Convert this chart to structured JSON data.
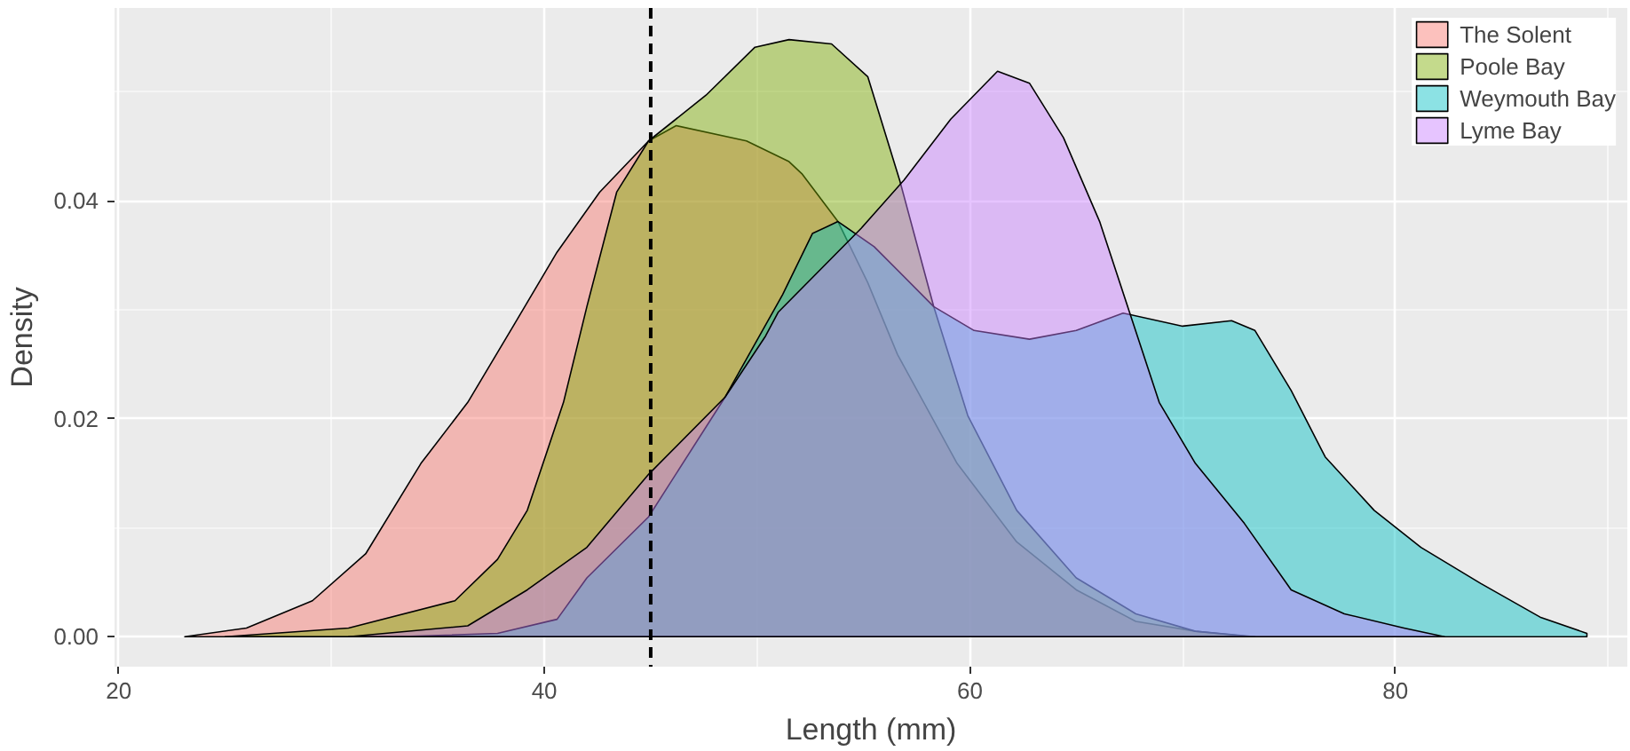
{
  "chart_data": {
    "type": "area",
    "xlabel": "Length (mm)",
    "ylabel": "Density",
    "xlim": [
      19.8,
      90.9
    ],
    "ylim": [
      -0.00275,
      0.0577
    ],
    "xticks": [
      20,
      40,
      60,
      80
    ],
    "yticks": [
      {
        "value": 0,
        "label": "0.00"
      },
      {
        "value": 0.02,
        "label": "0.02"
      },
      {
        "value": 0.04,
        "label": "0.04"
      }
    ],
    "grid": true,
    "legend": "top right",
    "ref_lines": [
      {
        "axis": "x",
        "value": 45,
        "label": null,
        "color": "#000000",
        "line_style": "dashed"
      }
    ],
    "series": [
      {
        "name": "The Solent",
        "color": "#f8766d",
        "x": [
          23.1,
          26.0,
          29.1,
          31.6,
          34.2,
          36.4,
          38.6,
          40.6,
          42.6,
          44.9,
          46.2,
          49.5,
          51.5,
          52.1,
          53.8,
          55.2,
          56.6,
          59.4,
          62.2,
          65.0,
          67.8,
          70.6,
          73.2
        ],
        "values": [
          0.0,
          0.0008,
          0.0033,
          0.0076,
          0.0159,
          0.0215,
          0.0287,
          0.0353,
          0.0408,
          0.0455,
          0.0469,
          0.0455,
          0.0436,
          0.0425,
          0.0381,
          0.0325,
          0.0259,
          0.0159,
          0.0087,
          0.0043,
          0.0014,
          0.0005,
          0.0
        ]
      },
      {
        "name": "Poole Bay",
        "color": "#7cae00",
        "x": [
          25.0,
          30.8,
          35.8,
          37.8,
          39.2,
          40.9,
          42.0,
          43.4,
          44.9,
          47.6,
          49.9,
          51.5,
          53.5,
          55.2,
          56.7,
          58.3,
          59.9,
          62.2,
          65.0,
          67.8,
          70.6,
          73.4
        ],
        "values": [
          0.0,
          0.0008,
          0.0033,
          0.0071,
          0.0116,
          0.0215,
          0.0303,
          0.0408,
          0.0455,
          0.0497,
          0.0541,
          0.0548,
          0.0544,
          0.0514,
          0.0419,
          0.0303,
          0.0203,
          0.0116,
          0.0054,
          0.0021,
          0.0005,
          0.0
        ]
      },
      {
        "name": "Weymouth Bay",
        "color": "#00bfc4",
        "x": [
          33.0,
          37.8,
          40.6,
          42.0,
          44.9,
          48.5,
          51.2,
          52.6,
          53.8,
          55.5,
          58.3,
          60.2,
          62.8,
          65.0,
          67.2,
          70.0,
          72.3,
          73.4,
          75.1,
          76.7,
          79.0,
          81.2,
          84.0,
          86.8,
          89.0
        ],
        "values": [
          0.0,
          0.0003,
          0.0016,
          0.0054,
          0.011,
          0.022,
          0.0314,
          0.037,
          0.0381,
          0.0358,
          0.0303,
          0.0281,
          0.0273,
          0.0281,
          0.0297,
          0.0285,
          0.029,
          0.0281,
          0.0226,
          0.0165,
          0.0116,
          0.0082,
          0.0049,
          0.0018,
          0.0003
        ]
      },
      {
        "name": "Lyme Bay",
        "color": "#c77cff",
        "x": [
          30.8,
          36.4,
          39.2,
          42.0,
          44.9,
          48.5,
          50.4,
          51.0,
          54.9,
          56.9,
          59.1,
          61.3,
          62.8,
          64.4,
          66.1,
          67.5,
          68.9,
          70.6,
          72.9,
          75.1,
          77.6,
          80.4,
          82.3
        ],
        "values": [
          0.0,
          0.001,
          0.0043,
          0.0082,
          0.0149,
          0.022,
          0.0276,
          0.0298,
          0.0375,
          0.0419,
          0.0475,
          0.0519,
          0.0508,
          0.0458,
          0.0381,
          0.0298,
          0.0215,
          0.0159,
          0.0104,
          0.0043,
          0.0021,
          0.0008,
          0.0
        ]
      }
    ]
  }
}
